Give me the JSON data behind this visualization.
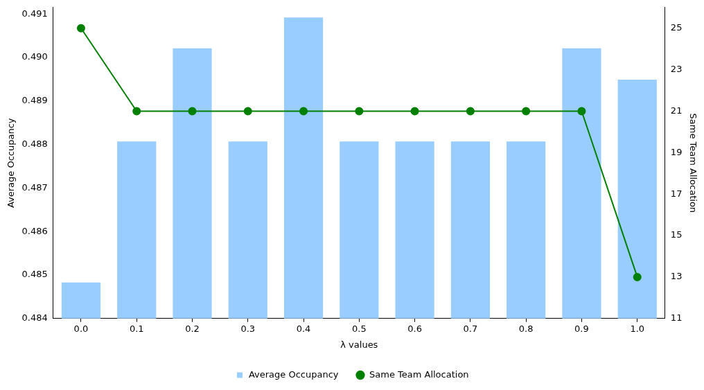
{
  "chart_data": {
    "type": "bar",
    "xlabel": "λ values",
    "ylabel": "Average Occupancy",
    "y2label": "Same Team Allocation",
    "categories": [
      "0.0",
      "0.1",
      "0.2",
      "0.3",
      "0.4",
      "0.5",
      "0.6",
      "0.7",
      "0.8",
      "0.9",
      "1.0"
    ],
    "series": [
      {
        "name": "Average Occupancy",
        "color": "#99ccff",
        "values": [
          0.48483,
          0.48807,
          0.49021,
          0.48807,
          0.49092,
          0.48807,
          0.48807,
          0.48807,
          0.48807,
          0.49021,
          0.48949
        ]
      },
      {
        "name": "Same Team Allocation",
        "type": "line",
        "axis": "y2",
        "color": "#008000",
        "marker": "circle",
        "values": [
          25,
          21,
          21,
          21,
          21,
          21,
          21,
          21,
          21,
          21,
          13
        ]
      }
    ],
    "ylim": [
      0.484,
      0.49115
    ],
    "yticks": [
      {
        "value": 0.484,
        "label": "0.484"
      },
      {
        "value": 0.485,
        "label": "0.485"
      },
      {
        "value": 0.486,
        "label": "0.486"
      },
      {
        "value": 0.487,
        "label": "0.487"
      },
      {
        "value": 0.488,
        "label": "0.488"
      },
      {
        "value": 0.489,
        "label": "0.489"
      },
      {
        "value": 0.49,
        "label": "0.490"
      },
      {
        "value": 0.491,
        "label": "0.491"
      }
    ],
    "y2lim": [
      11,
      26
    ],
    "y2ticks": [
      11,
      13,
      15,
      17,
      19,
      21,
      23,
      25
    ],
    "grid": false,
    "legend": "bottom"
  }
}
